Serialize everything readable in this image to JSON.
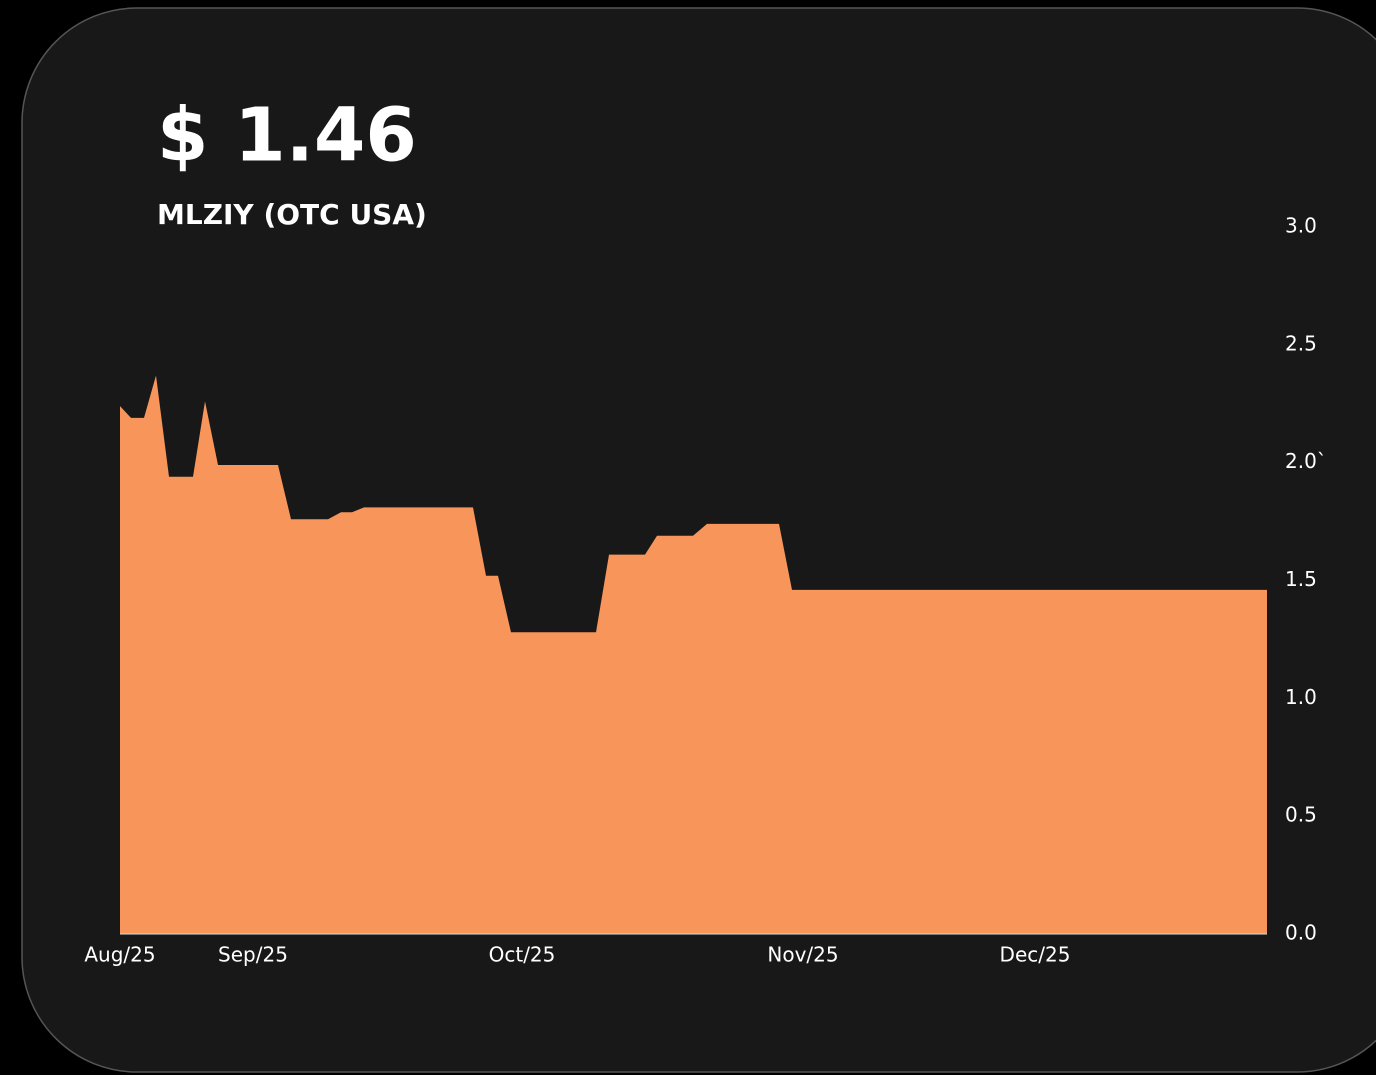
{
  "chart_data": {
    "type": "area",
    "title": "$ 1.46",
    "subtitle": "MLZIY (OTC USA)",
    "color": "#f7955a",
    "x": [
      0,
      1.1,
      2.4,
      3.6,
      4.9,
      7.3,
      8.5,
      9.8,
      15.8,
      17.1,
      20.8,
      22.1,
      23.2,
      24.4,
      35.3,
      36.6,
      37.8,
      39.1,
      47.6,
      48.9,
      52.5,
      53.7,
      57.3,
      58.7,
      65.9,
      67.2,
      114.7
    ],
    "values": [
      2.24,
      2.19,
      2.19,
      2.37,
      1.94,
      1.94,
      2.26,
      1.99,
      1.99,
      1.76,
      1.76,
      1.79,
      1.79,
      1.81,
      1.81,
      1.52,
      1.52,
      1.28,
      1.28,
      1.61,
      1.61,
      1.69,
      1.69,
      1.74,
      1.74,
      1.46,
      1.46
    ],
    "xlim": [
      0,
      114.7
    ],
    "xticks": [
      {
        "value": 0,
        "label": "Aug/25"
      },
      {
        "value": 13.3,
        "label": "Sep/25"
      },
      {
        "value": 40.2,
        "label": "Oct/25"
      },
      {
        "value": 68.3,
        "label": "Nov/25"
      },
      {
        "value": 91.5,
        "label": "Dec/25"
      }
    ],
    "ylim": [
      0,
      3
    ],
    "yticks": [
      {
        "value": 0,
        "label": "0.0"
      },
      {
        "value": 0.5,
        "label": "0.5"
      },
      {
        "value": 1,
        "label": "1.0"
      },
      {
        "value": 1.5,
        "label": "1.5"
      },
      {
        "value": 2,
        "label": "2.0`"
      },
      {
        "value": 2.5,
        "label": "2.5"
      },
      {
        "value": 3,
        "label": "3.0"
      }
    ]
  }
}
